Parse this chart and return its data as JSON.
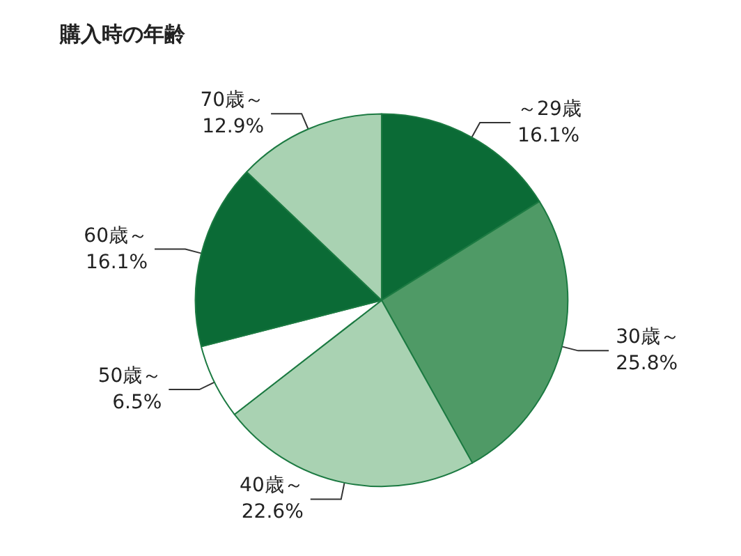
{
  "chart_data": {
    "type": "pie",
    "title": "購入時の年齢",
    "categories": [
      "～29歳",
      "30歳～",
      "40歳～",
      "50歳～",
      "60歳～",
      "70歳～"
    ],
    "values": [
      16.1,
      25.8,
      22.6,
      6.5,
      16.1,
      12.9
    ],
    "colors": [
      "#0b6b36",
      "#4f9a66",
      "#a9d2b2",
      "#ffffff",
      "#0b6b36",
      "#a9d2b2"
    ],
    "value_labels": [
      "16.1%",
      "25.8%",
      "22.6%",
      "6.5%",
      "16.1%",
      "12.9%"
    ],
    "legend": false
  }
}
